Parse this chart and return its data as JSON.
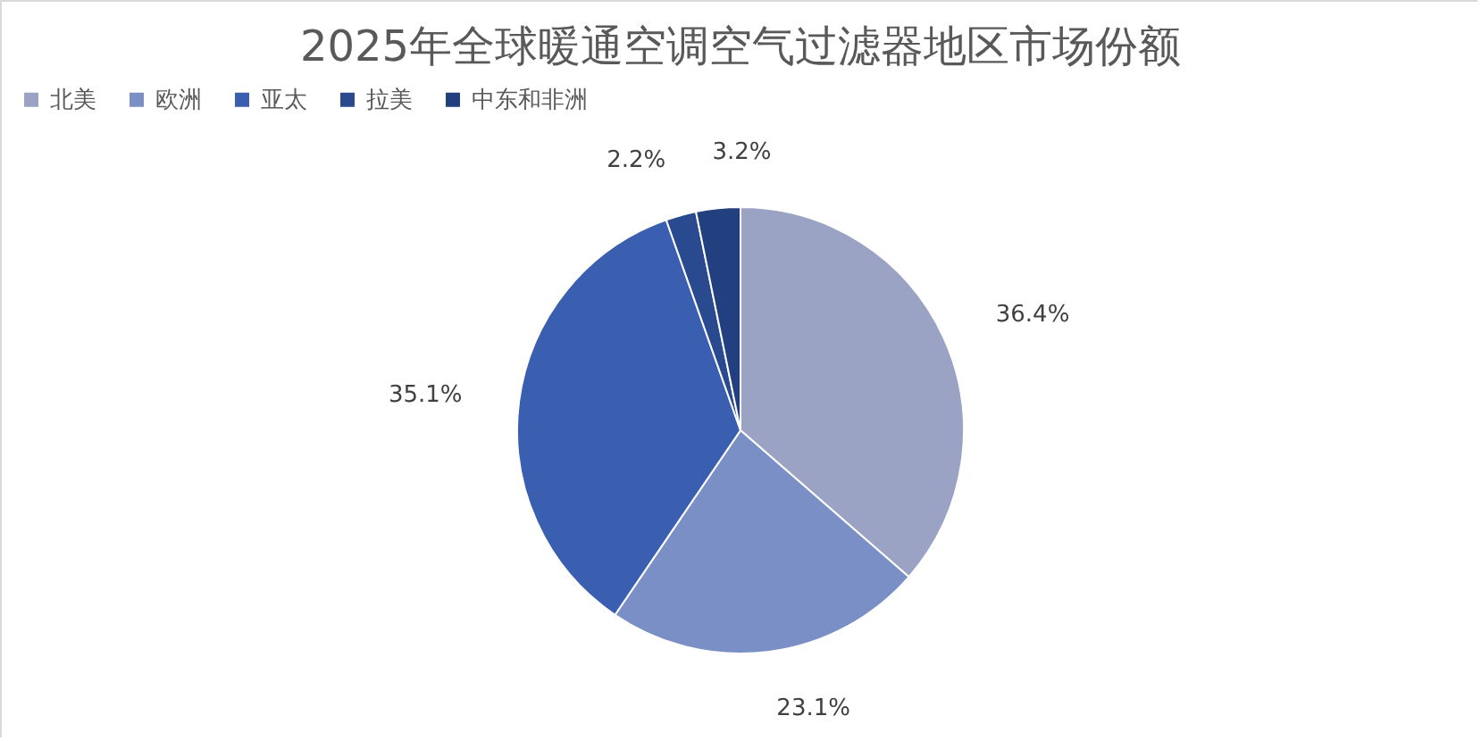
{
  "chart_data": {
    "type": "pie",
    "title": "2025年全球暖通空调空气过滤器地区市场份额",
    "categories": [
      "北美",
      "欧洲",
      "亚太",
      "拉美",
      "中东和非洲"
    ],
    "values": [
      36.4,
      23.1,
      35.1,
      2.2,
      3.2
    ],
    "value_labels": [
      "36.4%",
      "23.1%",
      "35.1%",
      "2.2%",
      "3.2%"
    ],
    "colors": [
      "#9aa3c4",
      "#7b8fc7",
      "#3a5fb0",
      "#2a4a90",
      "#22407f"
    ],
    "legend": "top"
  }
}
